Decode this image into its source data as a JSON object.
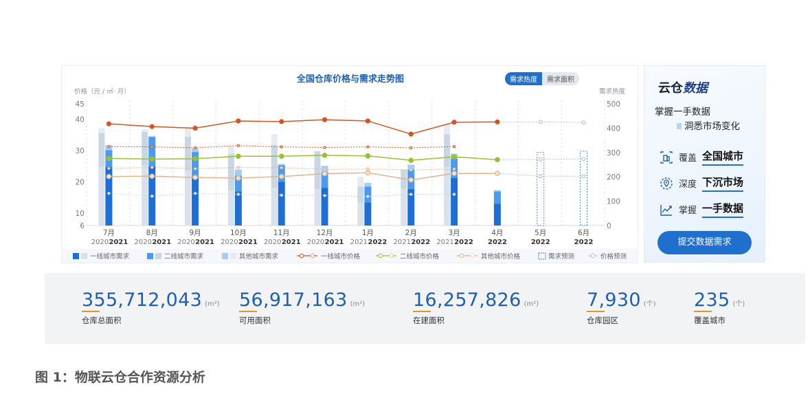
{
  "chart_data": {
    "type": "bar",
    "title": "全国仓库价格与需求走势图",
    "toggle": {
      "active": "需求热度",
      "inactive": "需求面积"
    },
    "y_left_label": "价格（元 / ㎡· 月）",
    "y_right_label": "需求热度",
    "y_left_ticks": [
      "45",
      "40",
      "30",
      "20",
      "10",
      "6"
    ],
    "y_right_ticks": [
      "500",
      "400",
      "300",
      "200",
      "100",
      "0"
    ],
    "ylim_left": [
      6,
      45
    ],
    "ylim_right": [
      0,
      500
    ],
    "categories": [
      {
        "month": "7月",
        "prev_year": "2020",
        "year": "2021"
      },
      {
        "month": "8月",
        "prev_year": "2020",
        "year": "2021"
      },
      {
        "month": "9月",
        "prev_year": "2020",
        "year": "2021"
      },
      {
        "month": "10月",
        "prev_year": "2020",
        "year": "2021"
      },
      {
        "month": "11月",
        "prev_year": "2020",
        "year": "2021"
      },
      {
        "month": "12月",
        "prev_year": "2020",
        "year": "2021"
      },
      {
        "month": "1月",
        "prev_year": "2021",
        "year": "2022"
      },
      {
        "month": "2月",
        "prev_year": "2021",
        "year": "2022"
      },
      {
        "month": "3月",
        "prev_year": "2021",
        "year": "2022"
      },
      {
        "month": "4月",
        "prev_year": "",
        "year": "2022"
      },
      {
        "month": "5月",
        "prev_year": "",
        "year": "2022"
      },
      {
        "month": "6月",
        "prev_year": "",
        "year": "2022"
      }
    ],
    "demand_current": {
      "tier1": [
        240,
        243,
        195,
        140,
        180,
        155,
        95,
        150,
        195,
        90,
        null,
        null
      ],
      "tier2": [
        70,
        120,
        107,
        65,
        68,
        65,
        65,
        80,
        80,
        50,
        null,
        null
      ],
      "other": [
        20,
        5,
        15,
        25,
        5,
        25,
        15,
        20,
        20,
        5,
        null,
        null
      ]
    },
    "demand_prev_year": {
      "tier1": [
        240,
        245,
        225,
        145,
        155,
        150,
        95,
        150,
        240,
        null,
        null,
        null
      ],
      "tier2": [
        140,
        140,
        140,
        150,
        175,
        155,
        65,
        80,
        135,
        null,
        null,
        null
      ],
      "other": [
        20,
        10,
        35,
        30,
        45,
        0,
        40,
        0,
        40,
        null,
        null,
        null
      ]
    },
    "demand_forecast": [
      null,
      null,
      null,
      null,
      null,
      null,
      null,
      null,
      null,
      null,
      300,
      305
    ],
    "price_tier1": [
      38.6,
      37.7,
      37.2,
      39.5,
      39.3,
      39.9,
      39.5,
      35.3,
      39.1,
      39.2,
      null,
      null
    ],
    "price_tier1_forecast": [
      null,
      null,
      null,
      null,
      null,
      null,
      null,
      null,
      null,
      39.2,
      39.2,
      39.0
    ],
    "price_tier1_prev": [
      31.3,
      31.2,
      30.9,
      31.6,
      31.2,
      31.0,
      31.2,
      30.9,
      31.3,
      null,
      null,
      null
    ],
    "price_tier2": [
      27.5,
      27.3,
      27.4,
      28.2,
      28.2,
      28.5,
      28.3,
      26.9,
      28.0,
      27.1,
      null,
      null
    ],
    "price_tier2_forecast": [
      null,
      null,
      null,
      null,
      null,
      null,
      null,
      null,
      null,
      27.1,
      27.2,
      27.3
    ],
    "price_tier2_prev": [
      24.3,
      24.6,
      24.2,
      24.6,
      24.5,
      24.0,
      24.1,
      23.8,
      24.1,
      null,
      null,
      null
    ],
    "price_other": [
      21.7,
      21.8,
      21.4,
      21.2,
      21.7,
      22.6,
      22.9,
      20.6,
      22.7,
      22.7,
      null,
      null
    ],
    "price_other_forecast": [
      null,
      null,
      null,
      null,
      null,
      null,
      null,
      null,
      null,
      22.7,
      21.8,
      21.8
    ],
    "price_other_prev": [
      16.3,
      15.4,
      16.3,
      16.0,
      15.7,
      15.6,
      15.3,
      16.0,
      16.0,
      null,
      null,
      null
    ],
    "legend": [
      "一线城市需求",
      "二线城市需求",
      "其他城市需求",
      "一线城市价格",
      "二线城市价格",
      "其他城市价格",
      "需求预测",
      "价格预测"
    ],
    "colors": {
      "tier1_bar": "#1d6fd6",
      "tier2_bar": "#4a9bef",
      "other_bar": "#a7cdf6",
      "prev_tier1": "#d9e2ec",
      "prev_tier2": "#c9d6e3",
      "prev_other": "#e5ebf1",
      "price1": "#d9531e",
      "price2": "#9bc12a",
      "price3": "#e2b487",
      "forecast": "#a8c4e4"
    }
  },
  "promo": {
    "brand_a": "云仓",
    "brand_b": "数据",
    "tagline1": "掌握一手数据",
    "tagline2": "洞悉市场变化",
    "features": [
      {
        "prefix": "覆盖",
        "bold": "全国城市"
      },
      {
        "prefix": "深度",
        "bold": "下沉市场"
      },
      {
        "prefix": "掌握",
        "bold": "一手数据"
      }
    ],
    "button": "提交数据需求"
  },
  "stats": [
    {
      "value": "355,712,043",
      "unit": "(m²)",
      "label": "仓库总面积"
    },
    {
      "value": "56,917,163",
      "unit": "(m²)",
      "label": "可用面积"
    },
    {
      "value": "16,257,826",
      "unit": "(m²)",
      "label": "在建面积"
    },
    {
      "value": "7,930",
      "unit": "(个)",
      "label": "仓库园区"
    },
    {
      "value": "235",
      "unit": "(个)",
      "label": "覆盖城市"
    }
  ],
  "caption": "图 1：物联云仓合作资源分析"
}
